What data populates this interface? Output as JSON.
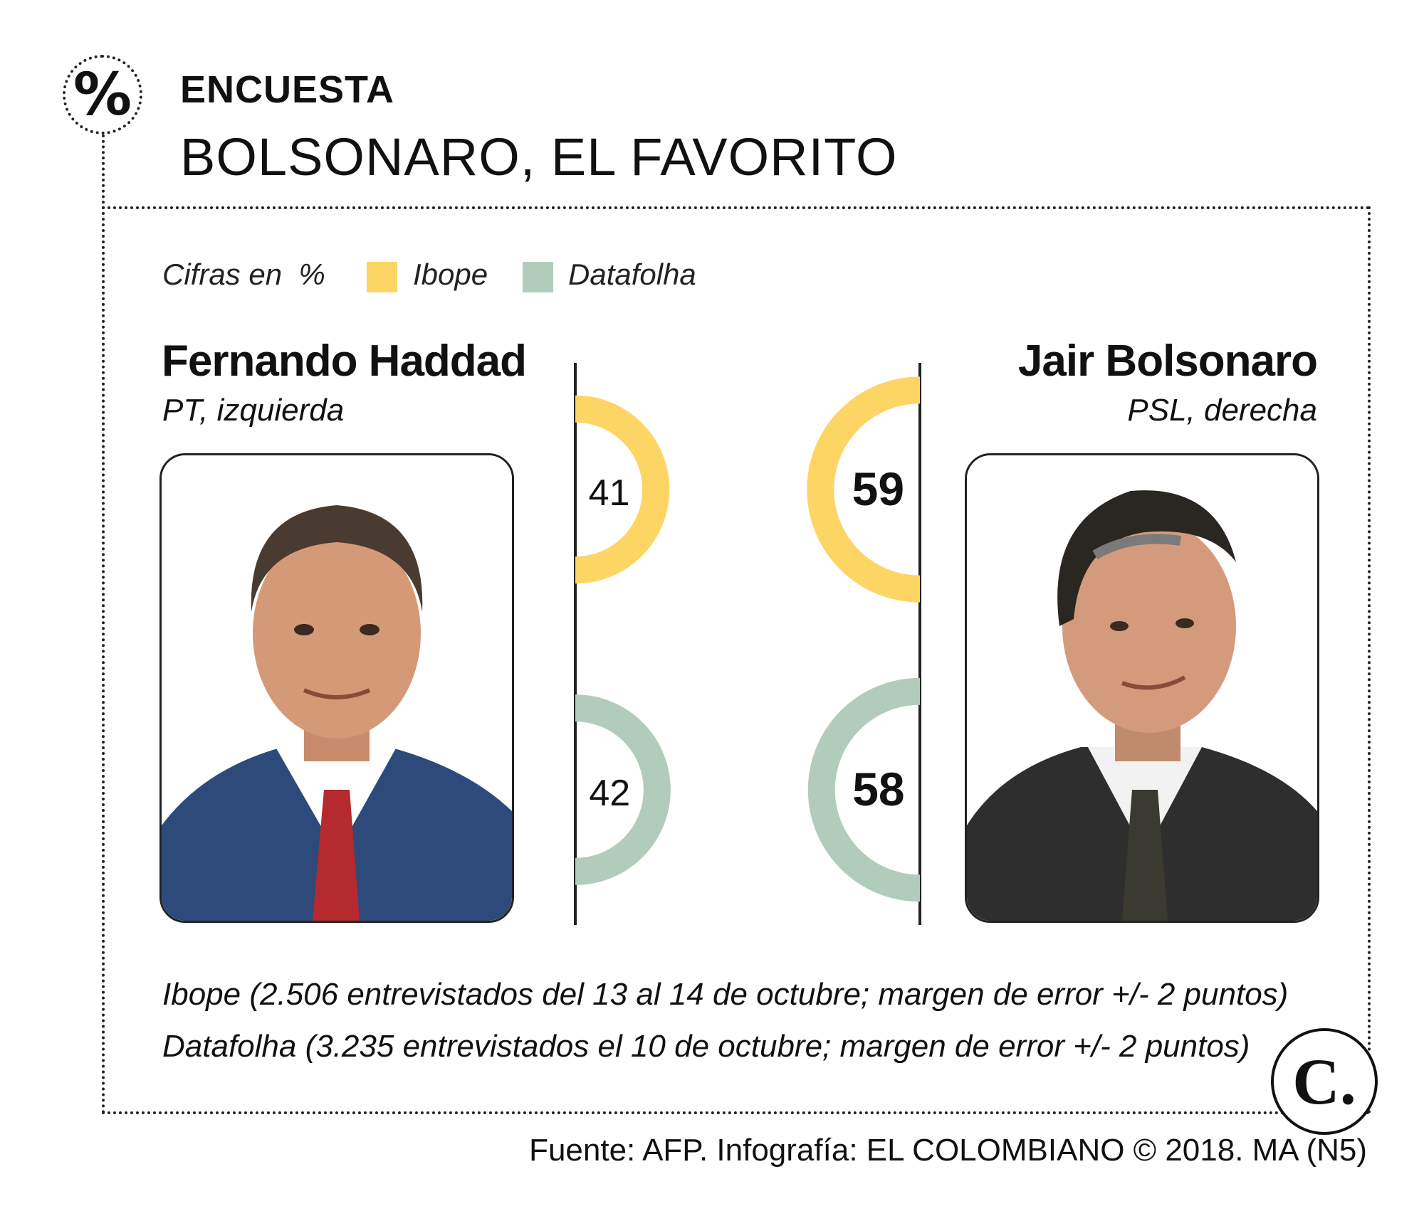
{
  "header": {
    "kicker": "ENCUESTA",
    "headline": "BOLSONARO, EL FAVORITO",
    "icon": "percent-icon",
    "icon_glyph": "%"
  },
  "legend": {
    "units_label": "Cifras en  %",
    "items": [
      {
        "label": "Ibope",
        "color": "#FDD565"
      },
      {
        "label": "Datafolha",
        "color": "#B2CCBB"
      }
    ]
  },
  "candidates": {
    "left": {
      "name": "Fernando Haddad",
      "party": "PT, izquierda"
    },
    "right": {
      "name": "Jair Bolsonaro",
      "party": "PSL, derecha"
    }
  },
  "chart_data": {
    "type": "pie",
    "units": "%",
    "series": [
      {
        "name": "Ibope",
        "color": "#FDD565",
        "values": [
          41,
          59
        ]
      },
      {
        "name": "Datafolha",
        "color": "#B2CCBB",
        "values": [
          42,
          58
        ]
      }
    ],
    "categories": [
      "Fernando Haddad",
      "Jair Bolsonaro"
    ],
    "value_labels": {
      "ibope_left": "41",
      "ibope_right": "59",
      "datafolha_left": "42",
      "datafolha_right": "58"
    }
  },
  "footnotes": [
    "Ibope (2.506 entrevistados del 13 al 14 de octubre; margen de error +/- 2 puntos)",
    "Datafolha (3.235 entrevistados el 10 de octubre; margen de error +/- 2 puntos)"
  ],
  "logo": {
    "text": "C."
  },
  "source": "Fuente: AFP. Infografía: EL COLOMBIANO © 2018. MA (N5)"
}
